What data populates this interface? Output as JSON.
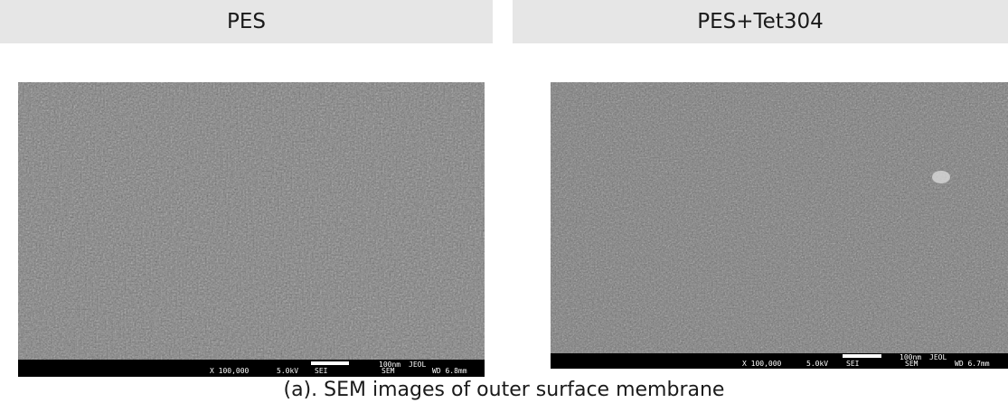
{
  "panels": [
    {
      "title": "PES",
      "scale": {
        "mag": "X 100,000",
        "kv": "5.0kV",
        "det": "SEI",
        "scale_label": "100nm",
        "brand": "JEOL",
        "mode": "SEM",
        "wd": "WD 6.8mm"
      }
    },
    {
      "title": "PES+Tet304",
      "scale": {
        "mag": "X 100,000",
        "kv": "5.0kV",
        "det": "SEI",
        "scale_label": "100nm",
        "brand": "JEOL",
        "mode": "SEM",
        "wd": "WD 6.7mm"
      }
    }
  ],
  "caption": "(a). SEM images of outer surface membrane",
  "colors": {
    "header_bg": "#e6e6e6",
    "sem_gray": "#7f7f7f",
    "scalebar_bg": "#000000"
  }
}
